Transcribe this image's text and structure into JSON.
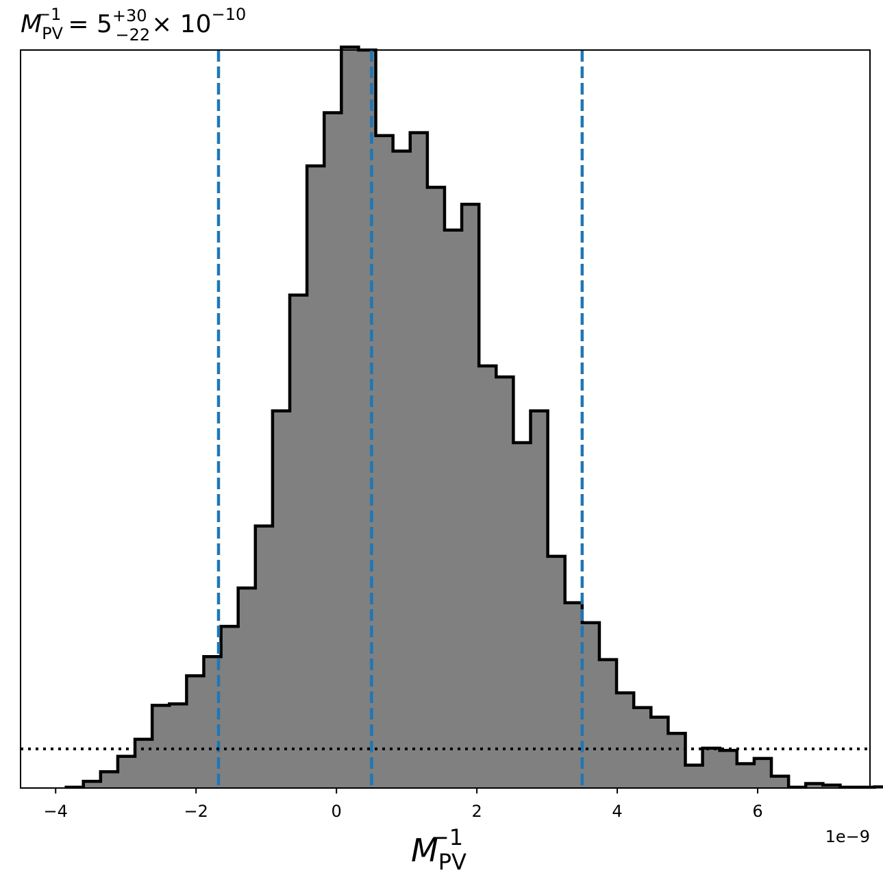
{
  "chart_data": {
    "type": "histogram",
    "title": {
      "symbol": "M",
      "symbol_superscript": "−1",
      "symbol_subscript": "PV",
      "equals": "= 5",
      "upper_error": "+30",
      "lower_error": "−22",
      "multiplier": "× 10",
      "multiplier_exponent": "−10"
    },
    "xlabel": {
      "symbol": "M",
      "superscript": "−1",
      "subscript": "PV"
    },
    "x_offset_label": "1e−9",
    "xlim": [
      -4.5,
      7.6
    ],
    "ylim": [
      0,
      1.0
    ],
    "x_ticks": [
      {
        "value": -4,
        "label": "−4"
      },
      {
        "value": -2,
        "label": "−2"
      },
      {
        "value": 0,
        "label": "0"
      },
      {
        "value": 2,
        "label": "2"
      },
      {
        "value": 4,
        "label": "4"
      },
      {
        "value": 6,
        "label": "6"
      }
    ],
    "y_ticks_shown": false,
    "bin_start": -3.85,
    "bin_width": 0.245,
    "bin_heights": [
      0.001,
      0.009,
      0.022,
      0.043,
      0.066,
      0.112,
      0.114,
      0.152,
      0.178,
      0.219,
      0.271,
      0.355,
      0.511,
      0.668,
      0.843,
      0.915,
      1.004,
      1.0,
      0.884,
      0.863,
      0.888,
      0.814,
      0.756,
      0.791,
      0.572,
      0.557,
      0.468,
      0.511,
      0.314,
      0.251,
      0.224,
      0.174,
      0.129,
      0.109,
      0.096,
      0.074,
      0.031,
      0.054,
      0.051,
      0.033,
      0.04,
      0.016,
      0.001,
      0.006,
      0.004,
      0.001,
      0.001,
      0.0015,
      0.001
    ],
    "fill_color": "#808080",
    "edge_color": "#000000",
    "quantile_lines": {
      "values": [
        -1.68,
        0.5,
        3.5
      ],
      "color": "#1f77b4",
      "style": "dashed"
    },
    "reference_line": {
      "y": 0.053,
      "color": "#000000",
      "style": "dotted"
    },
    "grid": false
  }
}
